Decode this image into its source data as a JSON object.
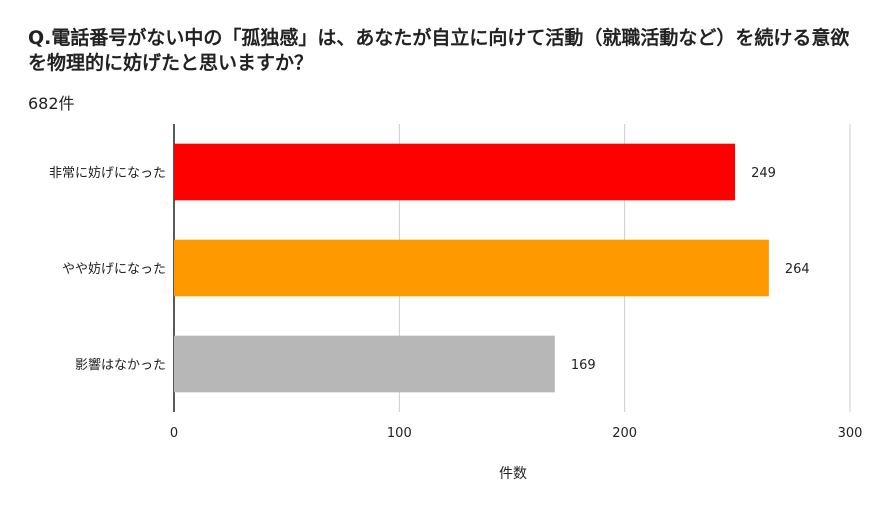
{
  "header": {
    "title": "Q.電話番号がない中の「孤独感」は、あなたが自立に向けて活動（就職活動など）を続ける意欲を物理的に妨げたと思いますか？",
    "subtitle": "682件"
  },
  "chart_data": {
    "type": "bar",
    "orientation": "horizontal",
    "categories": [
      "非常に妨げになった",
      "やや妨げになった",
      "影響はなかった"
    ],
    "values": [
      249,
      264,
      169
    ],
    "colors": [
      "#ff0000",
      "#ff9900",
      "#b7b7b7"
    ],
    "xlabel": "件数",
    "ylabel": "",
    "xlim": [
      0,
      300
    ],
    "xticks": [
      0,
      100,
      200,
      300
    ],
    "grid": true,
    "legend": "none"
  }
}
